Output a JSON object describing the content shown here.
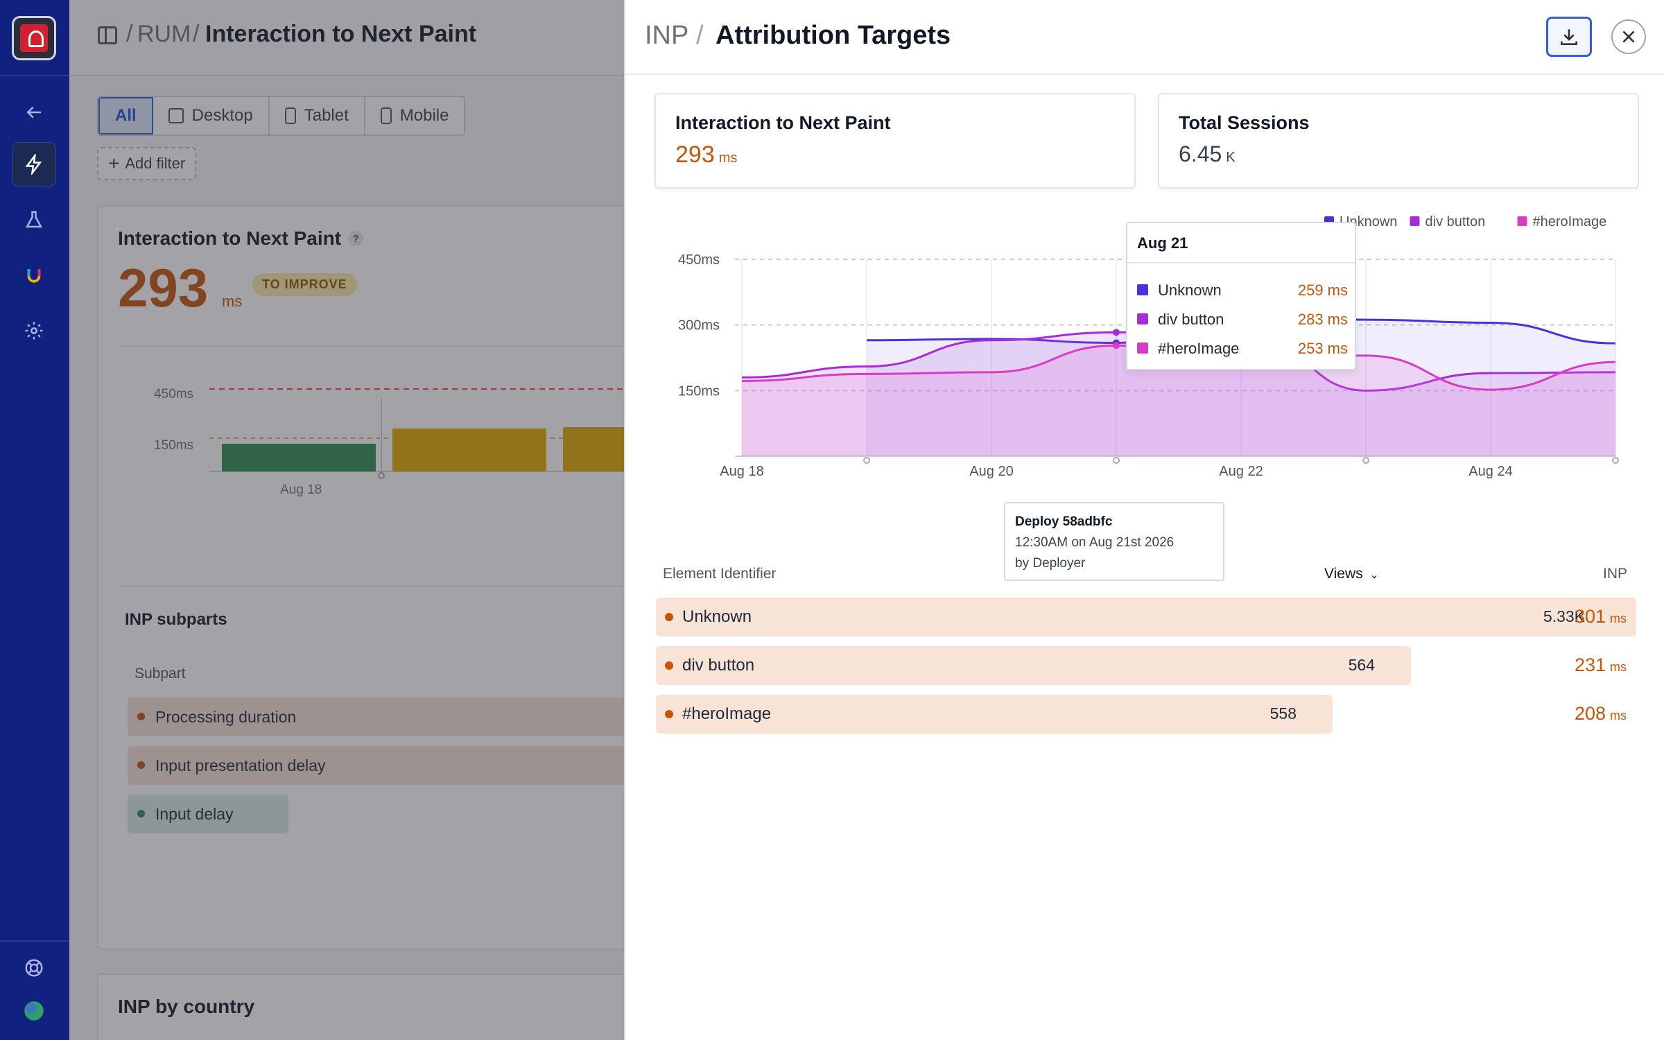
{
  "background": {
    "breadcrumb": {
      "root": "RUM",
      "separator": "/",
      "current": "Interaction to Next Paint"
    },
    "device_tabs": [
      {
        "label": "All"
      },
      {
        "label": "Desktop"
      },
      {
        "label": "Tablet"
      },
      {
        "label": "Mobile"
      }
    ],
    "add_filter": "Add filter",
    "summary": {
      "title": "Interaction to Next Paint",
      "help": "?",
      "value": "293",
      "unit": "ms",
      "badge": "TO IMPROVE"
    },
    "mini_chart": {
      "y_labels": [
        "450ms",
        "150ms"
      ],
      "x_labels": [
        "Aug 18"
      ]
    },
    "subparts": {
      "title": "INP subparts",
      "column": "Subpart",
      "rows": [
        {
          "label": "Processing duration"
        },
        {
          "label": "Input presentation delay"
        },
        {
          "label": "Input delay"
        }
      ]
    },
    "country_title": "INP by country"
  },
  "panel": {
    "title_prefix": "INP",
    "title_separator": "/",
    "title": "Attribution Targets",
    "kpis": [
      {
        "label": "Interaction to Next Paint",
        "value": "293",
        "unit": "ms"
      },
      {
        "label": "Total Sessions",
        "value": "6.45",
        "unit": "K"
      }
    ],
    "tooltip": {
      "date": "Aug 21",
      "rows": [
        {
          "name": "Unknown",
          "value": "259 ms"
        },
        {
          "name": "div button",
          "value": "283 ms"
        },
        {
          "name": "#heroImage",
          "value": "253 ms"
        }
      ]
    },
    "deploy": {
      "title": "Deploy 58adbfc",
      "time": "12:30AM on Aug 21st 2026",
      "by": "by Deployer"
    },
    "table": {
      "columns": {
        "element": "Element Identifier",
        "views": "Views",
        "inp": "INP"
      },
      "rows": [
        {
          "name": "Unknown",
          "views": "5.33K",
          "inp": "301",
          "unit": "ms",
          "share": 1.0
        },
        {
          "name": "div button",
          "views": "564",
          "inp": "231",
          "unit": "ms",
          "share": 0.77
        },
        {
          "name": "#heroImage",
          "views": "558",
          "inp": "208",
          "unit": "ms",
          "share": 0.69
        }
      ]
    }
  },
  "colors": {
    "unknown": "#4f2fdc",
    "div_button": "#a72bd9",
    "hero_image": "#d93bc6",
    "accent_orange": "#c2570c"
  },
  "chart_data": {
    "type": "area",
    "categories": [
      "Aug 18",
      "Aug 19",
      "Aug 20",
      "Aug 21",
      "Aug 22",
      "Aug 23",
      "Aug 24",
      "Aug 25"
    ],
    "x_tick_labels": [
      "Aug 18",
      "Aug 20",
      "Aug 22",
      "Aug 24"
    ],
    "y_tick_labels": [
      "450ms",
      "300ms",
      "150ms"
    ],
    "ylim": [
      0,
      450
    ],
    "legend_position": "top-right",
    "grid": true,
    "series": [
      {
        "name": "Unknown",
        "values": [
          null,
          265,
          268,
          259,
          330,
          312,
          305,
          258
        ]
      },
      {
        "name": "div button",
        "values": [
          180,
          205,
          265,
          283,
          295,
          150,
          190,
          192
        ]
      },
      {
        "name": "#heroImage",
        "values": [
          172,
          188,
          192,
          253,
          230,
          230,
          152,
          215
        ]
      }
    ]
  }
}
